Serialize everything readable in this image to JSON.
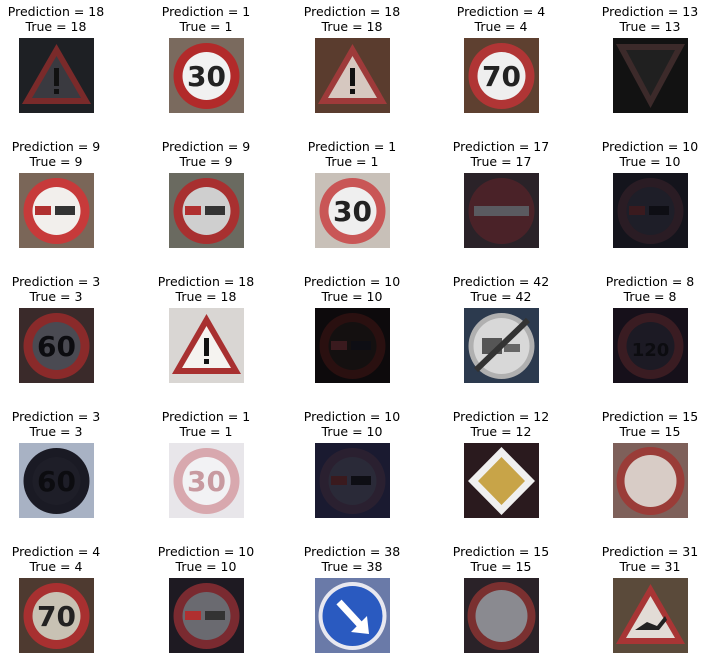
{
  "figure": {
    "cells": [
      {
        "pred": "Prediction = 18",
        "truth": "True = 18",
        "sign": "warning-exclamation",
        "bg": "#1e2024",
        "edge": "#7a2a2a",
        "fill": "#3a3a40",
        "tone": "dark"
      },
      {
        "pred": "Prediction = 1",
        "truth": "True = 1",
        "sign": "speed-30",
        "bg": "#7a6a5e",
        "edge": "#b22a2a",
        "fill": "#f1f1f1",
        "tone": "bright"
      },
      {
        "pred": "Prediction = 18",
        "truth": "True = 18",
        "sign": "warning-exclamation",
        "bg": "#5a3c2e",
        "edge": "#9e3a3a",
        "fill": "#d6c8c0",
        "tone": "mid"
      },
      {
        "pred": "Prediction = 4",
        "truth": "True = 4",
        "sign": "speed-70",
        "bg": "#5e4030",
        "edge": "#b03535",
        "fill": "#efefef",
        "tone": "bright"
      },
      {
        "pred": "Prediction = 13",
        "truth": "True = 13",
        "sign": "yield",
        "bg": "#121212",
        "edge": "#3c2a2a",
        "fill": "#202020",
        "tone": "dark"
      },
      {
        "pred": "Prediction = 9",
        "truth": "True = 9",
        "sign": "no-overtaking",
        "bg": "#7a6658",
        "edge": "#c73a3a",
        "fill": "#f2efec",
        "tone": "bright"
      },
      {
        "pred": "Prediction = 9",
        "truth": "True = 9",
        "sign": "no-overtaking",
        "bg": "#6a6a60",
        "edge": "#a83030",
        "fill": "#cfcfcf",
        "tone": "mid"
      },
      {
        "pred": "Prediction = 1",
        "truth": "True = 1",
        "sign": "speed-30",
        "bg": "#c8c0b8",
        "edge": "#c95656",
        "fill": "#efefef",
        "tone": "bright"
      },
      {
        "pred": "Prediction = 17",
        "truth": "True = 17",
        "sign": "no-entry",
        "bg": "#2a2228",
        "edge": "#4a2228",
        "fill": "#3d1c22",
        "tone": "dark"
      },
      {
        "pred": "Prediction = 10",
        "truth": "True = 10",
        "sign": "no-overtaking",
        "bg": "#14141c",
        "edge": "#2a1c24",
        "fill": "#1e1e28",
        "tone": "dark"
      },
      {
        "pred": "Prediction = 3",
        "truth": "True = 3",
        "sign": "speed-60",
        "bg": "#3a2a2a",
        "edge": "#8a2a2a",
        "fill": "#4a4a52",
        "tone": "dark"
      },
      {
        "pred": "Prediction = 18",
        "truth": "True = 18",
        "sign": "warning-exclamation",
        "bg": "#d9d6d3",
        "edge": "#a83030",
        "fill": "#f5f3f0",
        "tone": "bright"
      },
      {
        "pred": "Prediction = 10",
        "truth": "True = 10",
        "sign": "no-overtaking",
        "bg": "#0d0a0c",
        "edge": "#2a1010",
        "fill": "#141010",
        "tone": "dark"
      },
      {
        "pred": "Prediction = 42",
        "truth": "True = 42",
        "sign": "end-no-overtaking-trucks",
        "bg": "#2c3a4e",
        "edge": "#b0b0b0",
        "fill": "#d8d8d8",
        "tone": "bright"
      },
      {
        "pred": "Prediction = 8",
        "truth": "True = 8",
        "sign": "speed-120",
        "bg": "#16101a",
        "edge": "#3a1c22",
        "fill": "#1c1a24",
        "tone": "dark"
      },
      {
        "pred": "Prediction = 3",
        "truth": "True = 3",
        "sign": "speed-60",
        "bg": "#a8b2c4",
        "edge": "#1a1a24",
        "fill": "#1e1e28",
        "tone": "dark"
      },
      {
        "pred": "Prediction = 1",
        "truth": "True = 1",
        "sign": "speed-30",
        "bg": "#e8e6ea",
        "edge": "#d8a8ae",
        "fill": "#f2f2f4",
        "tone": "pale"
      },
      {
        "pred": "Prediction = 10",
        "truth": "True = 10",
        "sign": "no-overtaking",
        "bg": "#1a1a30",
        "edge": "#2a2030",
        "fill": "#2a2a38",
        "tone": "dark"
      },
      {
        "pred": "Prediction = 12",
        "truth": "True = 12",
        "sign": "priority-road",
        "bg": "#2a1a1e",
        "edge": "#f0f0f0",
        "fill": "#c8a448",
        "tone": "mid"
      },
      {
        "pred": "Prediction = 15",
        "truth": "True = 15",
        "sign": "no-vehicles",
        "bg": "#7e605a",
        "edge": "#9a3c38",
        "fill": "#d8ccc6",
        "tone": "mid"
      },
      {
        "pred": "Prediction = 4",
        "truth": "True = 4",
        "sign": "speed-70",
        "bg": "#4e3a30",
        "edge": "#a83030",
        "fill": "#c8c2b4",
        "tone": "mid"
      },
      {
        "pred": "Prediction = 10",
        "truth": "True = 10",
        "sign": "no-overtaking",
        "bg": "#1e1a22",
        "edge": "#7a2a30",
        "fill": "#6a6a70",
        "tone": "mid"
      },
      {
        "pred": "Prediction = 38",
        "truth": "True = 38",
        "sign": "keep-right",
        "bg": "#6a7aa8",
        "edge": "#e8e8f0",
        "fill": "#2a5ac0",
        "tone": "bright"
      },
      {
        "pred": "Prediction = 15",
        "truth": "True = 15",
        "sign": "no-vehicles",
        "bg": "#2a2228",
        "edge": "#7a3030",
        "fill": "#8a8a90",
        "tone": "mid"
      },
      {
        "pred": "Prediction = 31",
        "truth": "True = 31",
        "sign": "wild-animals",
        "bg": "#5a4a3a",
        "edge": "#a83535",
        "fill": "#e2dcd6",
        "tone": "bright"
      }
    ]
  }
}
